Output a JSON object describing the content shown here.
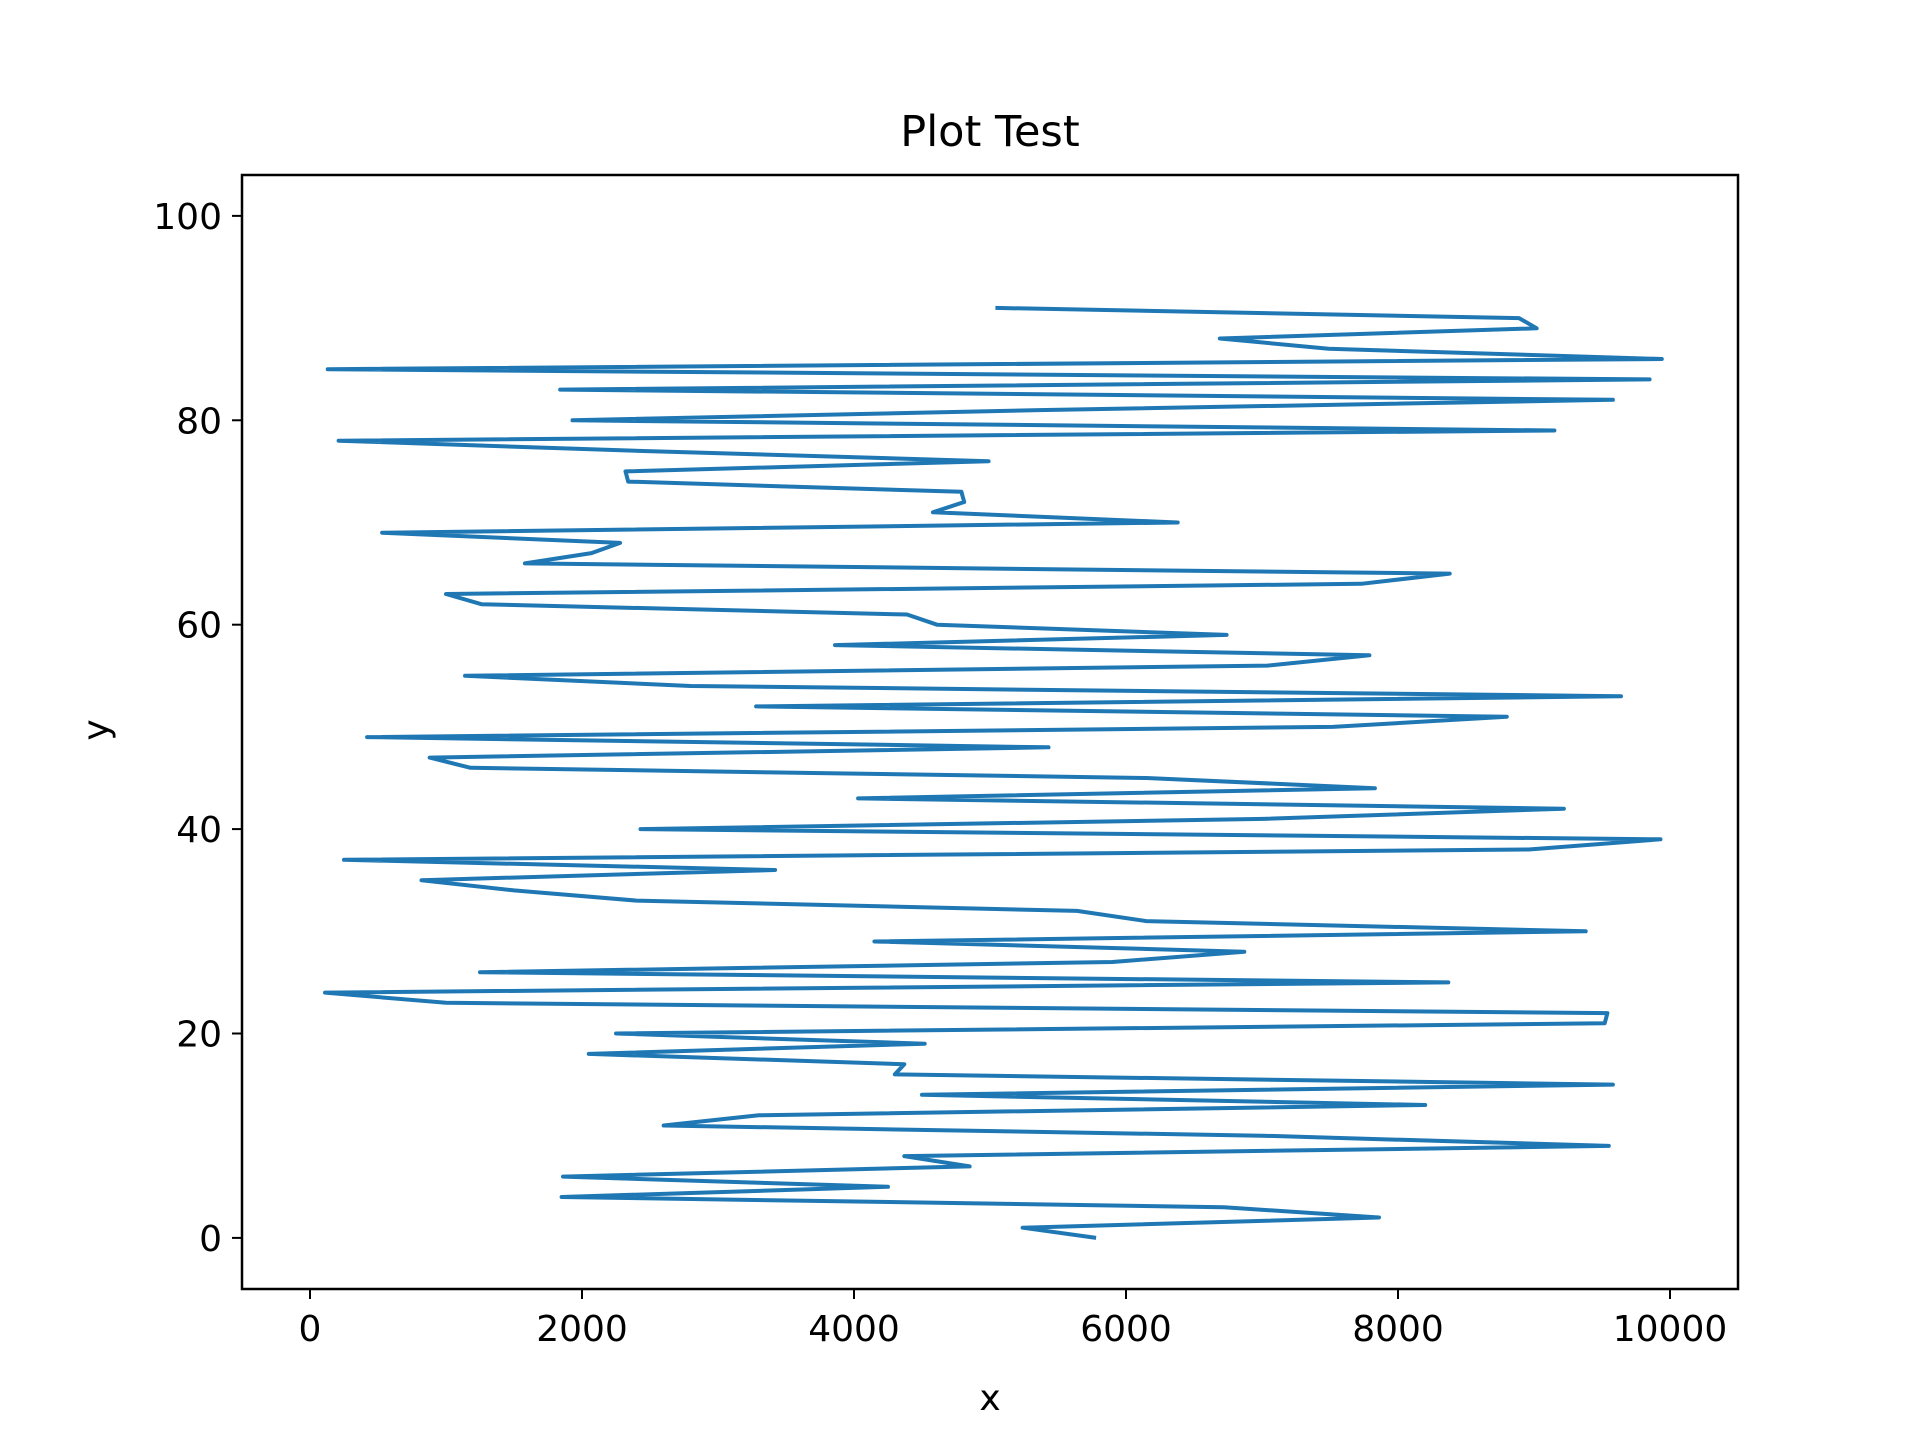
{
  "chart_data": {
    "type": "line",
    "title": "Plot Test",
    "xlabel": "x",
    "ylabel": "y",
    "xlim": [
      -500,
      10500
    ],
    "ylim": [
      -5,
      104
    ],
    "xticks": [
      0,
      2000,
      4000,
      6000,
      8000,
      10000
    ],
    "yticks": [
      0,
      20,
      40,
      60,
      80,
      100
    ],
    "grid": false,
    "series": [
      {
        "color": "#1f77b4",
        "x": [
          5780,
          5240,
          7860,
          6720,
          1850,
          4250,
          1860,
          4850,
          4370,
          9550,
          7000,
          2600,
          3300,
          8200,
          4500,
          9580,
          4300,
          4370,
          2050,
          4520,
          2250,
          9520,
          9540,
          1000,
          110,
          8370,
          1250,
          5900,
          6870,
          4150,
          9380,
          6150,
          5640,
          2400,
          1500,
          820,
          3420,
          250,
          8960,
          9930,
          2430,
          7010,
          9220,
          4030,
          7830,
          6150,
          1180,
          880,
          5430,
          420,
          7520,
          8800,
          3280,
          9640,
          2800,
          1140,
          7040,
          7790,
          3860,
          6740,
          4610,
          4390,
          1260,
          1000,
          7730,
          8380,
          1580,
          2070,
          2280,
          530,
          6380,
          4580,
          4810,
          4790,
          2340,
          2320,
          4990,
          2420,
          210,
          9150,
          1930,
          5360,
          9580,
          1840,
          9850,
          130,
          9940,
          7490,
          6690,
          9020,
          8890,
          5040
        ],
        "y": [
          0,
          1,
          2,
          3,
          4,
          5,
          6,
          7,
          8,
          9,
          10,
          11,
          12,
          13,
          14,
          15,
          16,
          17,
          18,
          19,
          20,
          21,
          22,
          23,
          24,
          25,
          26,
          27,
          28,
          29,
          30,
          31,
          32,
          33,
          34,
          35,
          36,
          37,
          38,
          39,
          40,
          41,
          42,
          43,
          44,
          45,
          46,
          47,
          48,
          49,
          50,
          51,
          52,
          53,
          54,
          55,
          56,
          57,
          58,
          59,
          60,
          61,
          62,
          63,
          64,
          65,
          66,
          67,
          68,
          69,
          70,
          71,
          72,
          73,
          74,
          75,
          76,
          77,
          78,
          79,
          80,
          81,
          82,
          83,
          84,
          85,
          86,
          87,
          88,
          89,
          90,
          91
        ]
      }
    ]
  }
}
